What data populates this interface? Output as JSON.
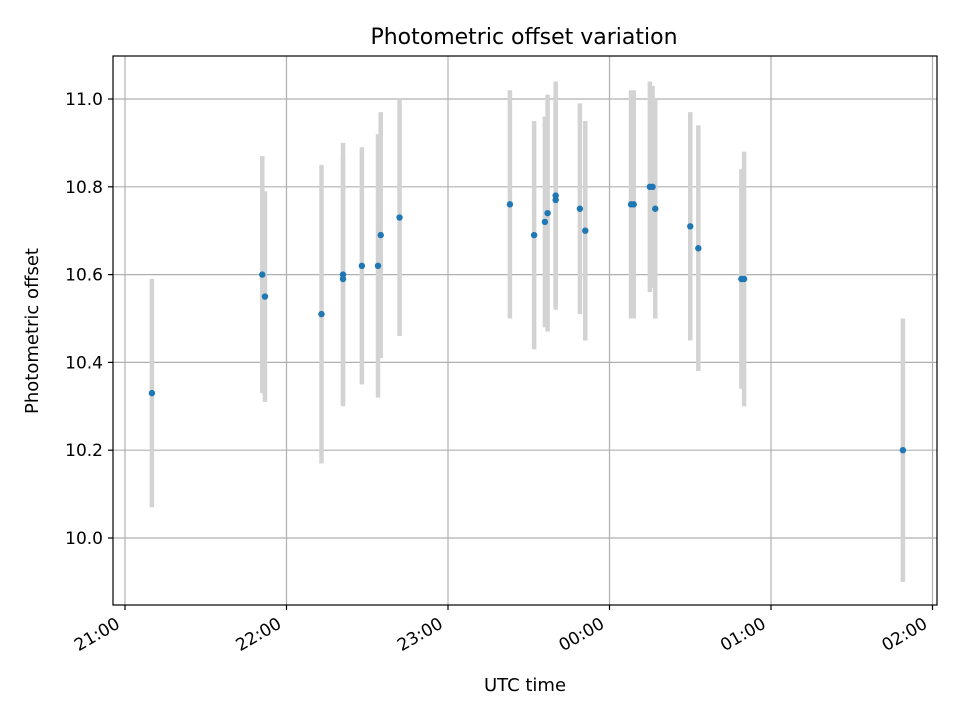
{
  "chart_data": {
    "type": "scatter",
    "title": "Photometric offset variation",
    "xlabel": "UTC time",
    "ylabel": "Photometric offset",
    "x_ticks": [
      "21:00",
      "22:00",
      "23:00",
      "00:00",
      "01:00",
      "02:00"
    ],
    "y_ticks": [
      "10.0",
      "10.2",
      "10.4",
      "10.6",
      "10.8",
      "11.0"
    ],
    "ylim": [
      9.85,
      11.1
    ],
    "grid": true,
    "marker_color": "#1f77b4",
    "errorbar_color": "#d3d3d3",
    "points": [
      {
        "t": "21:10",
        "y": 10.33,
        "err": 0.26
      },
      {
        "t": "21:51",
        "y": 10.6,
        "err": 0.27
      },
      {
        "t": "21:52",
        "y": 10.55,
        "err": 0.24
      },
      {
        "t": "22:13",
        "y": 10.51,
        "err": 0.34
      },
      {
        "t": "22:21",
        "y": 10.6,
        "err": 0.3
      },
      {
        "t": "22:21",
        "y": 10.59,
        "err": 0.28
      },
      {
        "t": "22:28",
        "y": 10.62,
        "err": 0.27
      },
      {
        "t": "22:34",
        "y": 10.62,
        "err": 0.3
      },
      {
        "t": "22:35",
        "y": 10.69,
        "err": 0.28
      },
      {
        "t": "22:42",
        "y": 10.73,
        "err": 0.27
      },
      {
        "t": "23:23",
        "y": 10.76,
        "err": 0.26
      },
      {
        "t": "23:32",
        "y": 10.69,
        "err": 0.26
      },
      {
        "t": "23:36",
        "y": 10.72,
        "err": 0.24
      },
      {
        "t": "23:37",
        "y": 10.74,
        "err": 0.27
      },
      {
        "t": "23:40",
        "y": 10.77,
        "err": 0.24
      },
      {
        "t": "23:40",
        "y": 10.78,
        "err": 0.26
      },
      {
        "t": "23:49",
        "y": 10.75,
        "err": 0.24
      },
      {
        "t": "23:51",
        "y": 10.7,
        "err": 0.25
      },
      {
        "t": "00:08",
        "y": 10.76,
        "err": 0.26
      },
      {
        "t": "00:09",
        "y": 10.76,
        "err": 0.26
      },
      {
        "t": "00:15",
        "y": 10.8,
        "err": 0.24
      },
      {
        "t": "00:16",
        "y": 10.8,
        "err": 0.23
      },
      {
        "t": "00:17",
        "y": 10.75,
        "err": 0.25
      },
      {
        "t": "00:30",
        "y": 10.71,
        "err": 0.26
      },
      {
        "t": "00:33",
        "y": 10.66,
        "err": 0.28
      },
      {
        "t": "00:49",
        "y": 10.59,
        "err": 0.25
      },
      {
        "t": "00:50",
        "y": 10.59,
        "err": 0.29
      },
      {
        "t": "01:49",
        "y": 10.2,
        "err": 0.3
      }
    ]
  }
}
